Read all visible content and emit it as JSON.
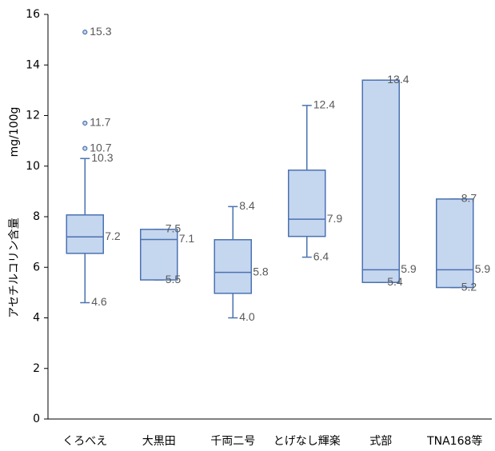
{
  "chart_data": {
    "type": "box",
    "ylabel": "アセチルコリン含量",
    "yunit": "mg/100g",
    "categories": [
      "くろべえ",
      "大黒田",
      "千両二号",
      "とげなし輝楽",
      "式部",
      "TNA168等"
    ],
    "min": [
      4.6,
      5.5,
      4.0,
      6.4,
      5.4,
      5.2
    ],
    "q1": [
      6.55,
      5.5,
      4.97,
      7.22,
      5.4,
      5.2
    ],
    "median": [
      7.2,
      7.1,
      5.8,
      7.9,
      5.9,
      5.9
    ],
    "q3": [
      8.07,
      7.5,
      7.09,
      9.84,
      13.4,
      8.7
    ],
    "max": [
      10.3,
      7.5,
      8.4,
      12.4,
      13.4,
      8.7
    ],
    "outliers": [
      [
        15.3,
        11.7,
        10.7
      ],
      [],
      [],
      [],
      [],
      []
    ],
    "min_labels": [
      "4.6",
      "5.5",
      "4.0",
      "6.4",
      "5.4",
      "5.2"
    ],
    "median_labels": [
      "7.2",
      "7.1",
      "5.8",
      "7.9",
      "5.9",
      "5.9"
    ],
    "max_labels": [
      "10.3",
      "7.5",
      "8.4",
      "12.4",
      "13.4",
      "8.7"
    ],
    "outlier_labels": [
      [
        "15.3",
        "11.7",
        "10.7"
      ],
      [],
      [],
      [],
      [],
      []
    ],
    "color": "#c5d6ef",
    "edge_color": "#4a72b0",
    "ylim": [
      0,
      16
    ],
    "yticks": [
      0,
      2,
      4,
      6,
      8,
      10,
      12,
      14,
      16
    ]
  }
}
